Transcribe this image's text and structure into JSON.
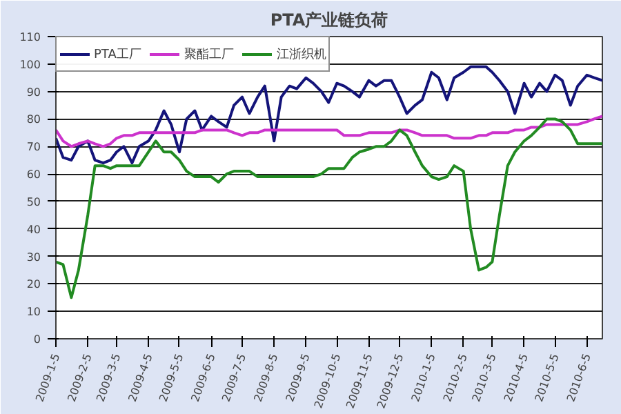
{
  "chart_data": {
    "type": "line",
    "title": "PTA产业链负荷",
    "x": [
      "2009-01-05",
      "2009-01-12",
      "2009-01-20",
      "2009-01-27",
      "2009-02-05",
      "2009-02-12",
      "2009-02-20",
      "2009-02-27",
      "2009-03-05",
      "2009-03-12",
      "2009-03-20",
      "2009-03-27",
      "2009-04-05",
      "2009-04-12",
      "2009-04-20",
      "2009-04-27",
      "2009-05-05",
      "2009-05-12",
      "2009-05-20",
      "2009-05-27",
      "2009-06-05",
      "2009-06-12",
      "2009-06-20",
      "2009-06-27",
      "2009-07-05",
      "2009-07-12",
      "2009-07-20",
      "2009-07-27",
      "2009-08-05",
      "2009-08-12",
      "2009-08-20",
      "2009-08-27",
      "2009-09-05",
      "2009-09-12",
      "2009-09-20",
      "2009-09-27",
      "2009-10-05",
      "2009-10-12",
      "2009-10-20",
      "2009-10-27",
      "2009-11-05",
      "2009-11-12",
      "2009-11-20",
      "2009-11-27",
      "2009-12-05",
      "2009-12-12",
      "2009-12-20",
      "2009-12-27",
      "2010-01-05",
      "2010-01-12",
      "2010-01-20",
      "2010-01-27",
      "2010-02-05",
      "2010-02-12",
      "2010-02-20",
      "2010-02-27",
      "2010-03-05",
      "2010-03-12",
      "2010-03-20",
      "2010-03-27",
      "2010-04-05",
      "2010-04-12",
      "2010-04-20",
      "2010-04-27",
      "2010-05-05",
      "2010-05-12",
      "2010-05-20",
      "2010-05-27",
      "2010-06-05",
      "2010-06-12",
      "2010-06-20"
    ],
    "series": [
      {
        "name": "PTA工厂",
        "color": "#14147a",
        "values": [
          73,
          66,
          65,
          70,
          72,
          65,
          64,
          65,
          68,
          70,
          64,
          70,
          72,
          76,
          83,
          78,
          68,
          80,
          83,
          76,
          81,
          79,
          77,
          85,
          88,
          82,
          88,
          92,
          72,
          88,
          92,
          91,
          95,
          93,
          90,
          86,
          93,
          92,
          90,
          88,
          94,
          92,
          94,
          94,
          88,
          82,
          85,
          87,
          97,
          95,
          87,
          95,
          97,
          99,
          99,
          99,
          97,
          94,
          90,
          82,
          93,
          88,
          93,
          90,
          96,
          94,
          85,
          92,
          96,
          95,
          94
        ]
      },
      {
        "name": "聚酯工厂",
        "color": "#cc33cc",
        "values": [
          76,
          72,
          70,
          71,
          72,
          71,
          70,
          71,
          73,
          74,
          74,
          75,
          75,
          75,
          75,
          75,
          75,
          75,
          75,
          76,
          76,
          76,
          76,
          75,
          74,
          75,
          75,
          76,
          76,
          76,
          76,
          76,
          76,
          76,
          76,
          76,
          76,
          74,
          74,
          74,
          75,
          75,
          75,
          75,
          76,
          76,
          75,
          74,
          74,
          74,
          74,
          73,
          73,
          73,
          74,
          74,
          75,
          75,
          75,
          76,
          76,
          77,
          77,
          78,
          78,
          78,
          78,
          78,
          79,
          80,
          81
        ]
      },
      {
        "name": "江浙织机",
        "color": "#228b22",
        "values": [
          28,
          27,
          15,
          25,
          45,
          63,
          63,
          62,
          63,
          63,
          63,
          63,
          68,
          72,
          68,
          68,
          65,
          61,
          59,
          59,
          59,
          57,
          60,
          61,
          61,
          61,
          59,
          59,
          59,
          59,
          59,
          59,
          59,
          59,
          60,
          62,
          62,
          62,
          66,
          68,
          69,
          70,
          70,
          72,
          76,
          74,
          68,
          63,
          59,
          58,
          59,
          63,
          61,
          40,
          25,
          26,
          28,
          45,
          63,
          68,
          72,
          74,
          77,
          80,
          80,
          79,
          76,
          71,
          71,
          71,
          71
        ]
      }
    ],
    "xlim": [
      "2009-01-05",
      "2010-06-20"
    ],
    "xticks": [
      {
        "value": "2009-01-05",
        "label": "2009-1-5"
      },
      {
        "value": "2009-02-05",
        "label": "2009-2-5"
      },
      {
        "value": "2009-03-05",
        "label": "2009-3-5"
      },
      {
        "value": "2009-04-05",
        "label": "2009-4-5"
      },
      {
        "value": "2009-05-05",
        "label": "2009-5-5"
      },
      {
        "value": "2009-06-05",
        "label": "2009-6-5"
      },
      {
        "value": "2009-07-05",
        "label": "2009-7-5"
      },
      {
        "value": "2009-08-05",
        "label": "2009-8-5"
      },
      {
        "value": "2009-09-05",
        "label": "2009-9-5"
      },
      {
        "value": "2009-10-05",
        "label": "2009-10-5"
      },
      {
        "value": "2009-11-05",
        "label": "2009-11-5"
      },
      {
        "value": "2009-12-05",
        "label": "2009-12-5"
      },
      {
        "value": "2010-01-05",
        "label": "2010-1-5"
      },
      {
        "value": "2010-02-05",
        "label": "2010-2-5"
      },
      {
        "value": "2010-03-05",
        "label": "2010-3-5"
      },
      {
        "value": "2010-04-05",
        "label": "2010-4-5"
      },
      {
        "value": "2010-05-05",
        "label": "2010-5-5"
      },
      {
        "value": "2010-06-05",
        "label": "2010-6-5"
      }
    ],
    "ylim": [
      0,
      110
    ],
    "yticks": [
      0,
      10,
      20,
      30,
      40,
      50,
      60,
      70,
      80,
      90,
      100,
      110
    ],
    "grid": "y",
    "legend": "top left",
    "marker": "none",
    "line_style": "solid"
  }
}
